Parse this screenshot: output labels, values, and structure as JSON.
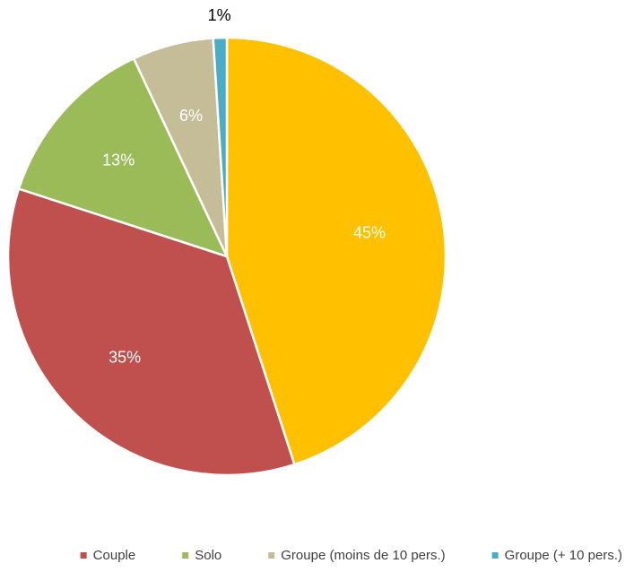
{
  "chart_data": {
    "type": "pie",
    "categories": [
      null,
      "Couple",
      "Solo",
      "Groupe (moins de 10 pers.)",
      "Groupe (+ 10 pers.)"
    ],
    "values": [
      45,
      35,
      13,
      6,
      1
    ],
    "value_labels": [
      "45%",
      "35%",
      "13%",
      "6%",
      "1%"
    ],
    "colors": [
      "#ffc000",
      "#c0504d",
      "#9bbb59",
      "#c4bd97",
      "#4bacc6"
    ],
    "legend": "bottom"
  }
}
